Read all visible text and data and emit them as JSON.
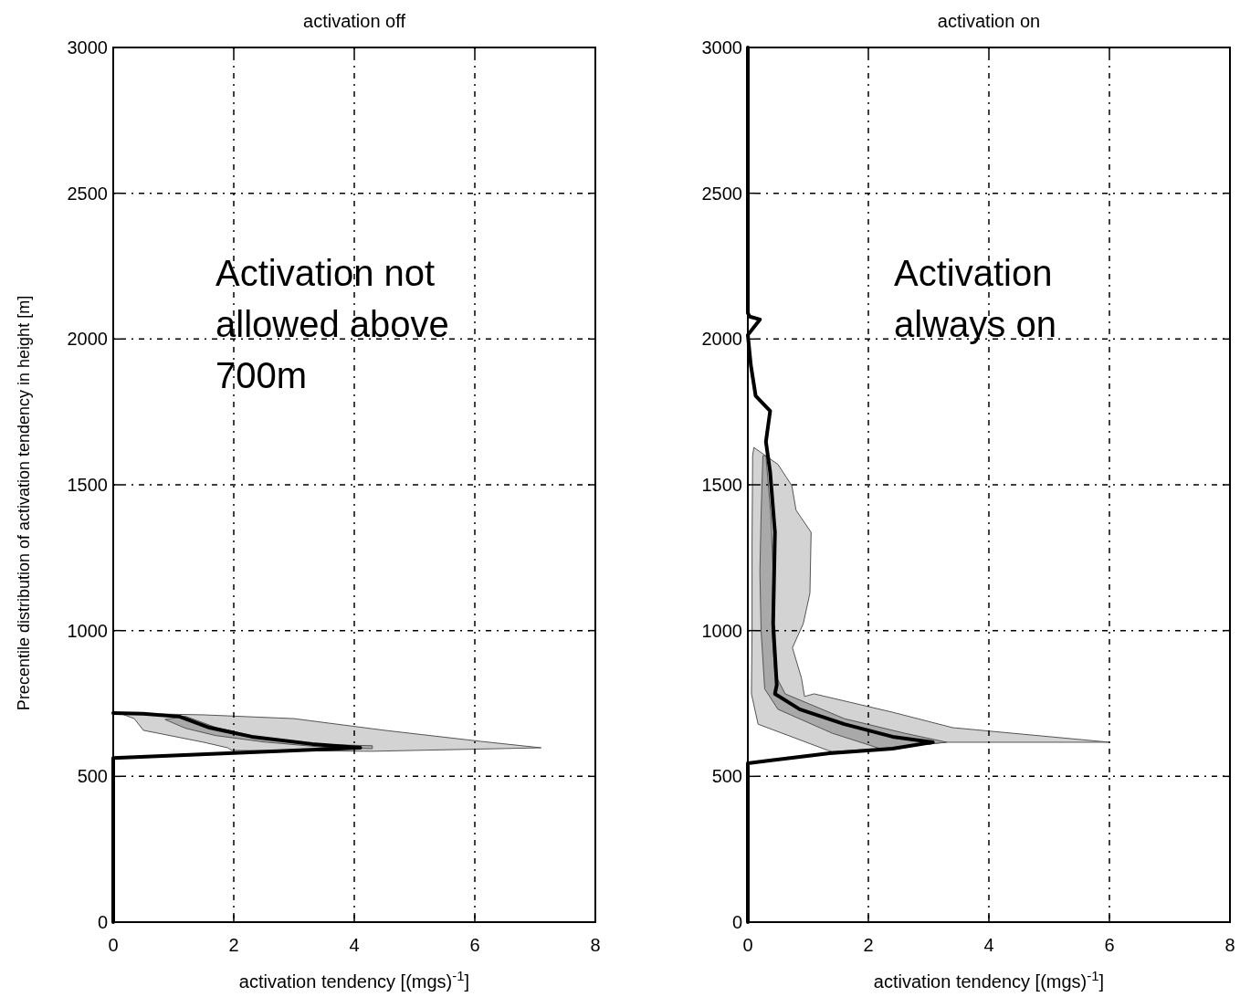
{
  "chart_data": [
    {
      "type": "line",
      "title": "activation off",
      "xlabel": "activation tendency [(mgs)$^{-1}$]",
      "ylabel": "Precentile distribution of activation tendency in height [m]",
      "xlim": [
        0,
        8
      ],
      "ylim": [
        0,
        3000
      ],
      "xticks": [
        0,
        2,
        4,
        6,
        8
      ],
      "yticks": [
        0,
        500,
        1000,
        1500,
        2000,
        2500,
        3000
      ],
      "grid": true,
      "annotations": [
        "Activation not allowed above 700m"
      ],
      "series": [
        {
          "type": "area",
          "color": "#d3d3d3",
          "x": [
            0,
            1.5,
            3.0,
            4.5,
            6.1,
            7.1,
            4.3,
            1.97,
            1.9,
            1.5,
            0.5,
            0.35,
            0.1
          ],
          "values": [
            717,
            711,
            698,
            658,
            620,
            598,
            586,
            589,
            598,
            617,
            658,
            698,
            717
          ]
        },
        {
          "type": "area",
          "color": "#a9a9a9",
          "x": [
            0.86,
            1.2,
            1.7,
            2.5,
            3.5,
            4.3,
            4.3,
            3.6,
            2.5,
            1.7,
            1.2
          ],
          "values": [
            695,
            706,
            668,
            630,
            609,
            605,
            595,
            598,
            618,
            640,
            665
          ]
        },
        {
          "type": "line",
          "color": "#000000",
          "x": [
            0,
            0,
            2,
            4.1,
            3.3,
            2.3,
            1.6,
            1.1,
            0.5,
            0
          ],
          "values": [
            0,
            563,
            580,
            598,
            611,
            636,
            667,
            705,
            715,
            717
          ]
        }
      ]
    },
    {
      "type": "line",
      "title": "activation on",
      "xlabel": "activation tendency [(mgs)$^{-1}$]",
      "xlim": [
        0,
        8
      ],
      "ylim": [
        0,
        3000
      ],
      "xticks": [
        0,
        2,
        4,
        6,
        8
      ],
      "yticks": [
        0,
        500,
        1000,
        1500,
        2000,
        2500,
        3000
      ],
      "grid": true,
      "annotations": [
        "Activation always on"
      ],
      "series": [
        {
          "type": "area",
          "color": "#d3d3d3",
          "x": [
            0.1,
            0.5,
            0.73,
            0.8,
            1.05,
            1.03,
            0.92,
            0.74,
            0.89,
            0.94,
            1.1,
            2.4,
            3.4,
            6.0,
            3.3,
            2.2,
            1.4,
            1.33,
            0.17,
            0.06,
            0.07,
            0.07,
            0.08
          ],
          "values": [
            1628,
            1570,
            1497,
            1413,
            1337,
            1128,
            1024,
            941,
            837,
            774,
            783,
            720,
            667,
            617,
            617,
            595,
            585,
            589,
            679,
            783,
            1000,
            1300,
            1600
          ]
        },
        {
          "type": "area",
          "color": "#a9a9a9",
          "x": [
            0.3,
            0.38,
            0.42,
            0.4,
            0.45,
            0.62,
            1.6,
            2.6,
            3.3,
            2.2,
            1.4,
            0.5,
            0.28,
            0.22,
            0.2,
            0.22,
            0.25
          ],
          "values": [
            1600,
            1400,
            1200,
            1000,
            850,
            783,
            698,
            648,
            617,
            595,
            648,
            730,
            800,
            1000,
            1200,
            1400,
            1600
          ]
        },
        {
          "type": "line",
          "color": "#000000",
          "x": [
            0,
            0,
            0.36,
            1.36,
            2.4,
            3.07,
            2.4,
            1.6,
            0.86,
            0.45,
            0.48,
            0.42,
            0.45,
            0.37,
            0.3,
            0.37,
            0.13,
            0.05,
            0,
            0.2,
            0.03,
            0,
            0
          ],
          "values": [
            0,
            545,
            554,
            579,
            595,
            617,
            636,
            679,
            730,
            783,
            814,
            1024,
            1337,
            1544,
            1648,
            1753,
            1805,
            1910,
            2014,
            2067,
            2077,
            2089,
            3000
          ]
        }
      ]
    }
  ]
}
